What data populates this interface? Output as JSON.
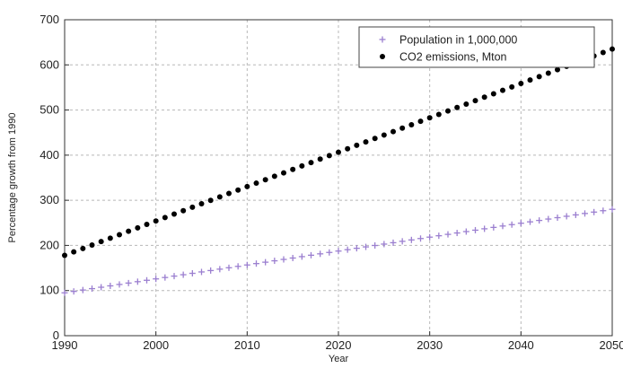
{
  "chart_data": {
    "type": "scatter",
    "title": "",
    "xlabel": "Year",
    "ylabel": "Percentage growth from 1990",
    "xlim": [
      1990,
      2050
    ],
    "ylim": [
      0,
      700
    ],
    "xticks": [
      1990,
      2000,
      2010,
      2020,
      2030,
      2040,
      2050
    ],
    "yticks": [
      0,
      100,
      200,
      300,
      400,
      500,
      600,
      700
    ],
    "grid": true,
    "legend_position": "top-right",
    "series": [
      {
        "name": "Population in 1,000,000",
        "marker": "plus",
        "color": "#9b7fd0",
        "x_start": 1990,
        "x_end": 2050,
        "x_step": 1,
        "y_start": 95,
        "y_end": 280
      },
      {
        "name": "CO2 emissions, Mton",
        "marker": "dot",
        "color": "#000000",
        "x_start": 1990,
        "x_end": 2050,
        "x_step": 1,
        "y_start": 178,
        "y_end": 635
      }
    ]
  }
}
